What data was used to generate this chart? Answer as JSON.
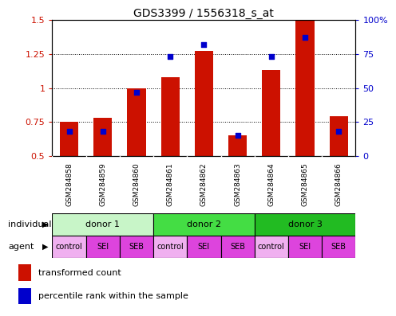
{
  "title": "GDS3399 / 1556318_s_at",
  "samples": [
    "GSM284858",
    "GSM284859",
    "GSM284860",
    "GSM284861",
    "GSM284862",
    "GSM284863",
    "GSM284864",
    "GSM284865",
    "GSM284866"
  ],
  "transformed_count": [
    0.75,
    0.78,
    1.0,
    1.08,
    1.27,
    0.65,
    1.13,
    1.5,
    0.79
  ],
  "percentile_rank": [
    0.18,
    0.18,
    0.47,
    0.73,
    0.82,
    0.15,
    0.73,
    0.87,
    0.18
  ],
  "ylim": [
    0.5,
    1.5
  ],
  "yticks_left": [
    0.5,
    0.75,
    1.0,
    1.25,
    1.5
  ],
  "yticks_right": [
    0,
    25,
    50,
    75,
    100
  ],
  "bar_color": "#cc1100",
  "dot_color": "#0000cc",
  "bar_width": 0.55,
  "dot_size": 22,
  "donors": [
    {
      "label": "donor 1",
      "start": 0,
      "end": 3,
      "color": "#c8f5c8"
    },
    {
      "label": "donor 2",
      "start": 3,
      "end": 6,
      "color": "#44dd44"
    },
    {
      "label": "donor 3",
      "start": 6,
      "end": 9,
      "color": "#22bb22"
    }
  ],
  "agents": [
    "control",
    "SEI",
    "SEB",
    "control",
    "SEI",
    "SEB",
    "control",
    "SEI",
    "SEB"
  ],
  "agent_color": "#dd44dd",
  "agent_light_color": "#f0b0f0",
  "legend_items": [
    "transformed count",
    "percentile rank within the sample"
  ],
  "gsm_bg": "#cccccc",
  "plot_bg": "#ffffff"
}
